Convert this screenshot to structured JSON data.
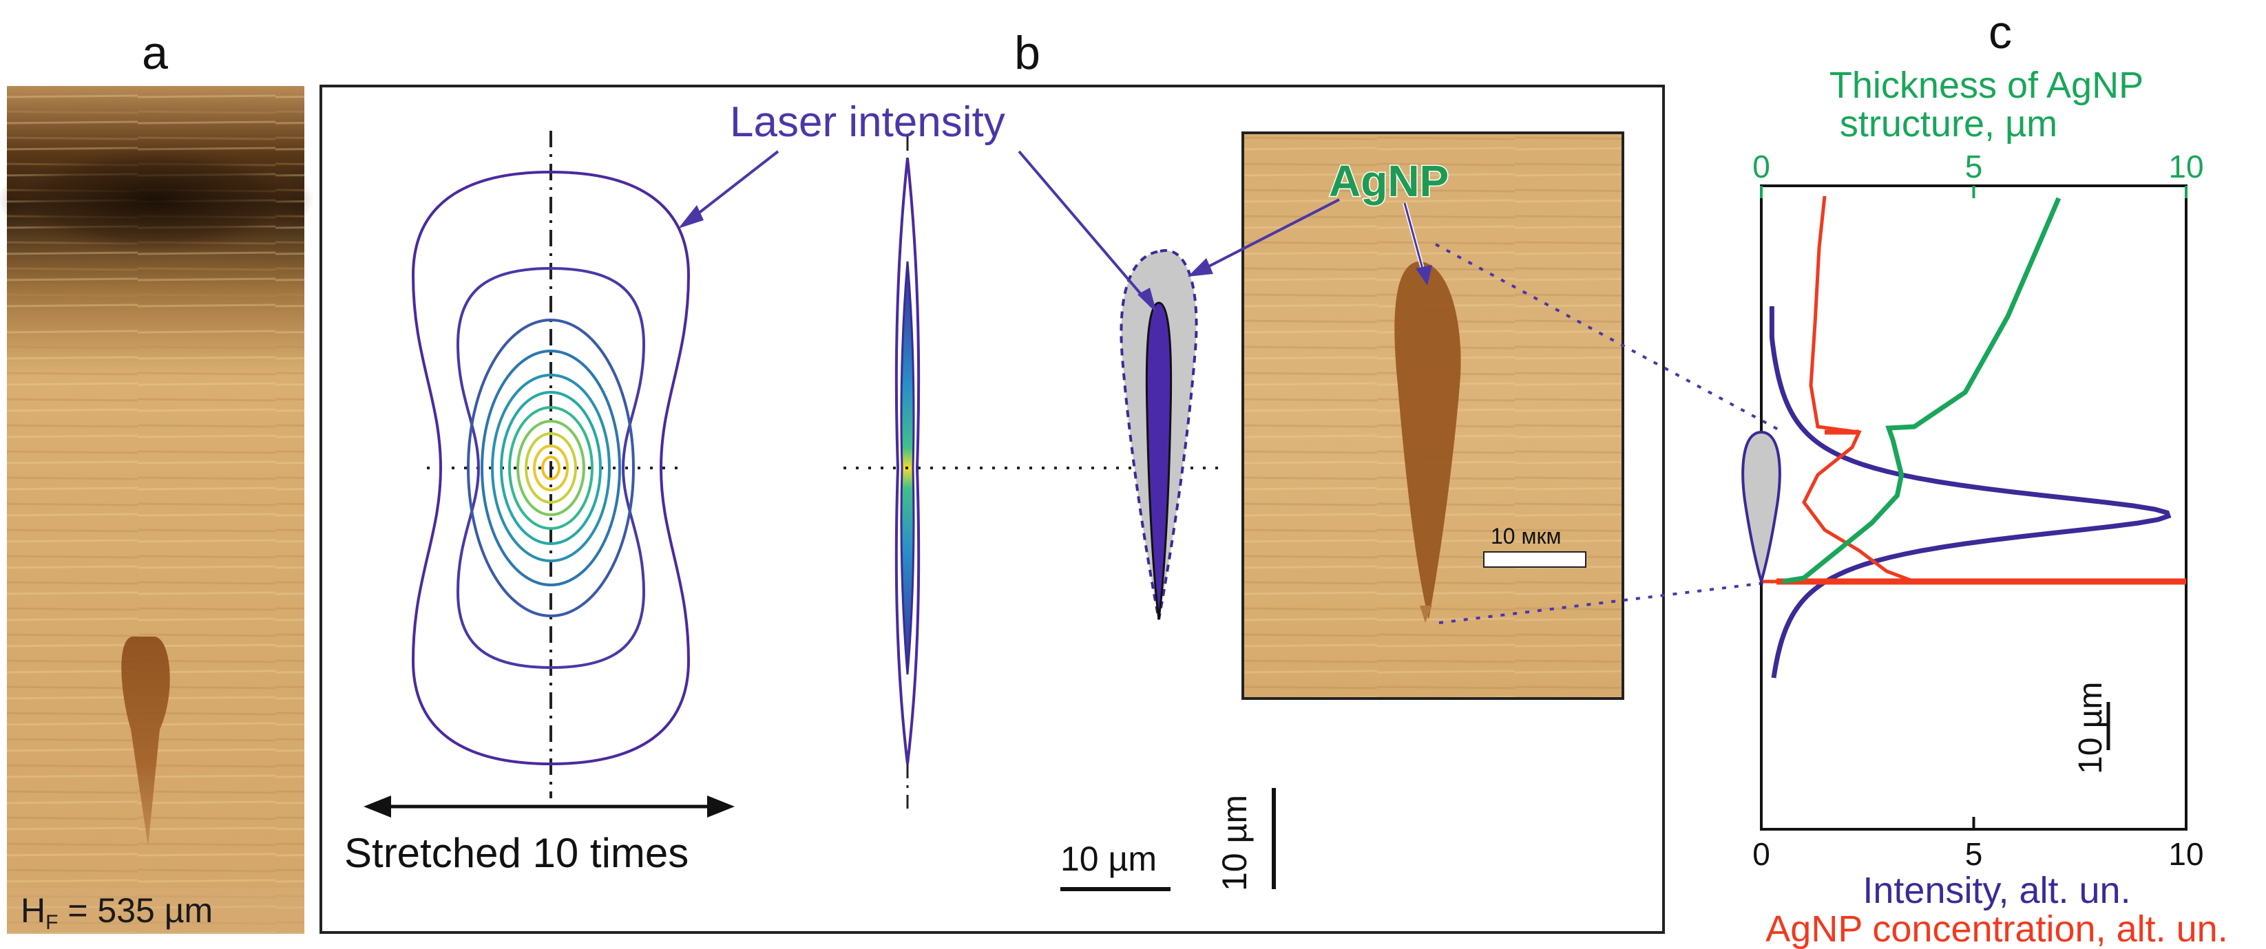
{
  "panels": {
    "a": {
      "letter": "a",
      "height_label_main": "H",
      "height_label_sub": "F",
      "height_label_value": " = 535 µm"
    },
    "b": {
      "letter": "b",
      "laser_intensity_label": "Laser intensity",
      "agnp_label": "AgNP",
      "stretch_label": "Stretched 10 times",
      "scale_horizontal": "10 µm",
      "scale_vertical": "10 µm",
      "micrograph_scale": "10 мкм"
    },
    "c": {
      "letter": "c",
      "top_axis_title_line1": "Thickness of AgNP",
      "top_axis_title_line2": "structure, µm",
      "bottom_axis_title_line1": "Intensity, alt. un.",
      "bottom_axis_title_line2": "AgNP concentration, alt. un.",
      "scale_vertical": "10 µm"
    }
  },
  "colors": {
    "intensity": "#3b2a98",
    "concentration": "#f03a1e",
    "thickness": "#19a65a",
    "agnp_fill": "#c8c8c8",
    "wood_base": "#d6a868",
    "stain": "#9a5a22"
  },
  "chart_data": {
    "type": "line",
    "top_axis": {
      "label": "Thickness of AgNP structure, µm",
      "ticks": [
        "0",
        "5",
        "10"
      ],
      "range": [
        0,
        10
      ]
    },
    "bottom_axis": {
      "label": "Intensity, alt. un. / AgNP concentration, alt. un.",
      "ticks": [
        "0",
        "5",
        "10"
      ],
      "range": [
        0,
        10
      ]
    },
    "series": [
      {
        "name": "Intensity, alt. un.",
        "color": "#3b2a98",
        "shape": "gaussian-like peak",
        "peak_value": 10
      },
      {
        "name": "AgNP concentration, alt. un.",
        "color": "#f03a1e",
        "max_value": 10
      },
      {
        "name": "Thickness of AgNP structure, µm",
        "color": "#19a65a",
        "max_value": 7
      }
    ]
  }
}
